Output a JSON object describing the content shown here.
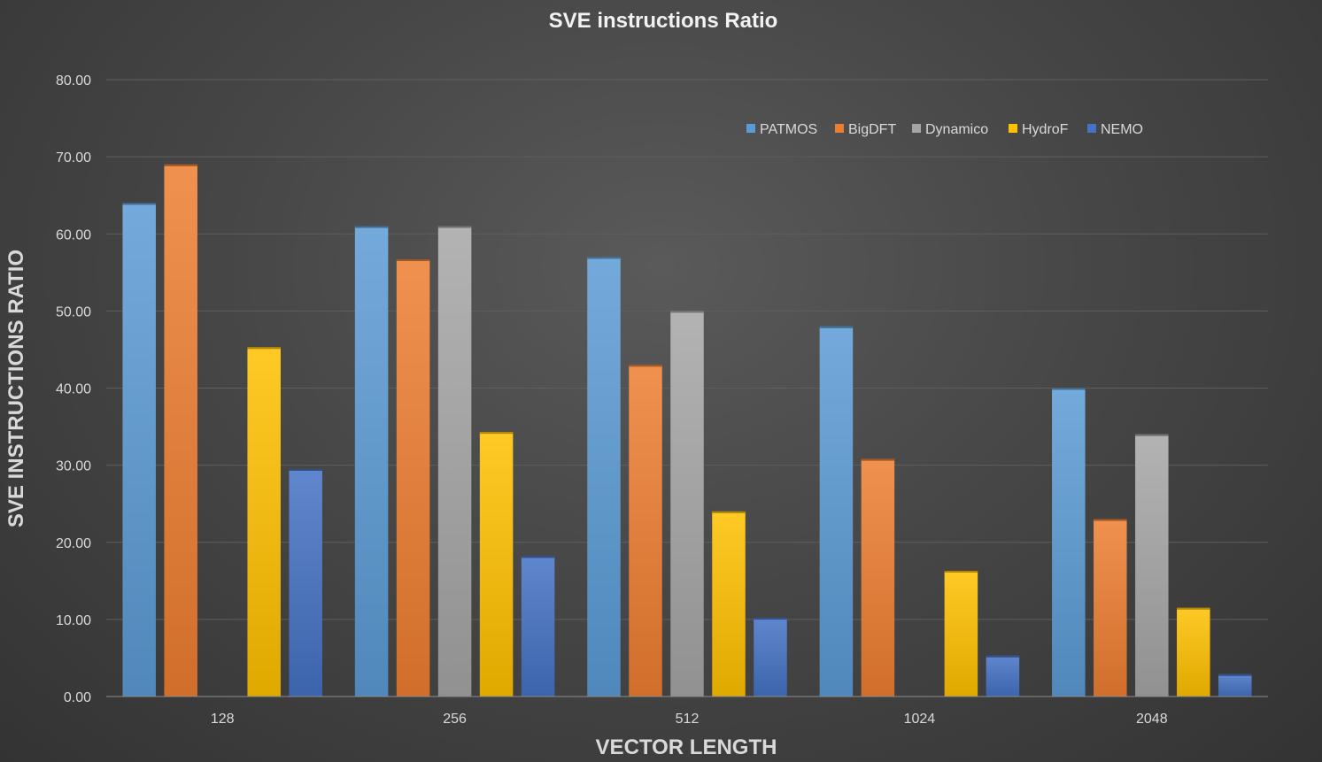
{
  "chart_data": {
    "type": "bar",
    "title": "SVE instructions Ratio",
    "xlabel": "VECTOR LENGTH",
    "ylabel": "SVE INSTRUCTIONS RATIO",
    "categories": [
      "128",
      "256",
      "512",
      "1024",
      "2048"
    ],
    "ylim": [
      0,
      80
    ],
    "yticks": [
      "0.00",
      "10.00",
      "20.00",
      "30.00",
      "40.00",
      "50.00",
      "60.00",
      "70.00",
      "80.00"
    ],
    "grid": true,
    "legend_position": "top-right",
    "series": [
      {
        "name": "PATMOS",
        "color": "#5b9bd5",
        "values": [
          64,
          61,
          57,
          48,
          40
        ]
      },
      {
        "name": "BigDFT",
        "color": "#ed7d31",
        "values": [
          69,
          56.7,
          43,
          30.8,
          23
        ]
      },
      {
        "name": "Dynamico",
        "color": "#a5a5a5",
        "values": [
          0,
          61,
          50,
          0,
          34
        ]
      },
      {
        "name": "HydroF",
        "color": "#ffc000",
        "values": [
          45.3,
          34.3,
          24,
          16.3,
          11.5
        ]
      },
      {
        "name": "NEMO",
        "color": "#4472c4",
        "values": [
          29.5,
          18.2,
          10.2,
          5.3,
          2.9
        ]
      }
    ]
  }
}
